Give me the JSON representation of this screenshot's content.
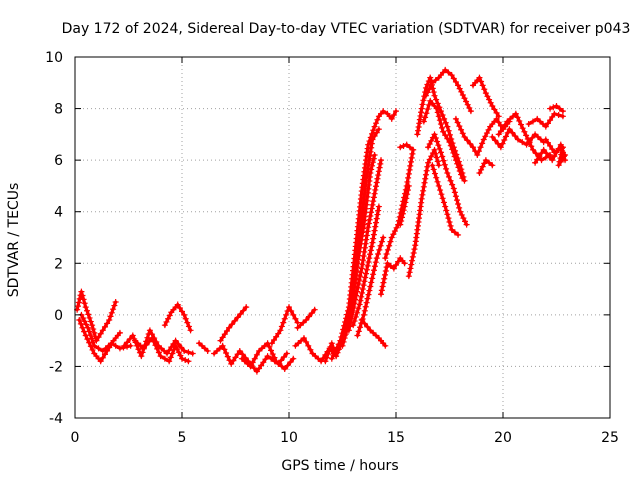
{
  "chart_data": {
    "type": "scatter",
    "title": "Day 172 of 2024, Sidereal Day-to-day VTEC variation (SDTVAR) for receiver p043",
    "xlabel": "GPS time / hours",
    "ylabel": "SDTVAR / TECUs",
    "xlim": [
      0,
      25
    ],
    "ylim": [
      -4,
      10
    ],
    "xticks": [
      "0",
      "5",
      "10",
      "15",
      "20",
      "25"
    ],
    "yticks": [
      "-4",
      "-2",
      "0",
      "2",
      "4",
      "6",
      "8",
      "10"
    ],
    "grid": true,
    "marker": "+",
    "color": "#ff0000",
    "series": [
      {
        "x": [
          0.1,
          0.3,
          0.5,
          0.8,
          1.0,
          1.3,
          1.6,
          1.9
        ],
        "y": [
          0.2,
          0.9,
          0.3,
          -0.4,
          -1.0,
          -0.6,
          -0.2,
          0.5
        ]
      },
      {
        "x": [
          0.2,
          0.5,
          0.9,
          1.2,
          1.5,
          1.8,
          2.1
        ],
        "y": [
          -0.2,
          -0.8,
          -1.5,
          -1.8,
          -1.4,
          -1.0,
          -0.7
        ]
      },
      {
        "x": [
          0.3,
          0.6,
          0.9,
          1.3,
          1.7,
          2.1,
          2.6
        ],
        "y": [
          0.0,
          -0.5,
          -1.2,
          -1.4,
          -1.1,
          -1.3,
          -1.2
        ]
      },
      {
        "x": [
          2.3,
          2.7,
          3.1,
          3.5,
          3.9,
          4.3,
          4.7,
          5.1,
          5.5
        ],
        "y": [
          -1.2,
          -0.8,
          -1.6,
          -0.6,
          -1.2,
          -1.5,
          -1.0,
          -1.4,
          -1.5
        ]
      },
      {
        "x": [
          2.8,
          3.2,
          3.6,
          4.0,
          4.4,
          4.7,
          5.0,
          5.3
        ],
        "y": [
          -1.0,
          -1.3,
          -0.9,
          -1.6,
          -1.8,
          -1.2,
          -1.7,
          -1.8
        ]
      },
      {
        "x": [
          4.2,
          4.5,
          4.8,
          5.1,
          5.4
        ],
        "y": [
          -0.4,
          0.1,
          0.4,
          0.0,
          -0.6
        ]
      },
      {
        "x": [
          5.8,
          6.2
        ],
        "y": [
          -1.1,
          -1.4
        ]
      },
      {
        "x": [
          6.5,
          6.9,
          7.3,
          7.7,
          8.1,
          8.5,
          9.0,
          9.5,
          9.9
        ],
        "y": [
          -1.5,
          -1.2,
          -1.9,
          -1.4,
          -1.8,
          -2.2,
          -1.6,
          -1.9,
          -1.5
        ]
      },
      {
        "x": [
          6.8,
          7.2,
          7.6,
          8.0
        ],
        "y": [
          -1.0,
          -0.5,
          -0.1,
          0.3
        ]
      },
      {
        "x": [
          7.8,
          8.2,
          8.6,
          9.0,
          9.4,
          9.8,
          10.2
        ],
        "y": [
          -1.7,
          -2.0,
          -1.4,
          -1.1,
          -1.8,
          -2.1,
          -1.7
        ]
      },
      {
        "x": [
          9.2,
          9.6,
          10.0,
          10.4
        ],
        "y": [
          -1.1,
          -0.6,
          0.3,
          -0.3
        ]
      },
      {
        "x": [
          10.3,
          10.7,
          11.1,
          11.5,
          11.9,
          12.2
        ],
        "y": [
          -1.2,
          -0.9,
          -1.5,
          -1.8,
          -1.3,
          -1.6
        ]
      },
      {
        "x": [
          10.4,
          10.8,
          11.2
        ],
        "y": [
          -0.5,
          -0.2,
          0.2
        ]
      },
      {
        "x": [
          11.7,
          12.0,
          12.2,
          12.4
        ],
        "y": [
          -1.8,
          -1.1,
          -1.6,
          -1.2
        ]
      },
      {
        "x": [
          12.0,
          12.4,
          12.8,
          13.1,
          13.4,
          13.7,
          14.0,
          14.2,
          14.4,
          14.6,
          14.8,
          15.0
        ],
        "y": [
          -1.7,
          -1.0,
          0.3,
          2.5,
          4.8,
          6.6,
          7.3,
          7.7,
          7.9,
          7.8,
          7.6,
          7.9
        ]
      },
      {
        "x": [
          12.2,
          12.6,
          13.0,
          13.3,
          13.6,
          13.9,
          14.2
        ],
        "y": [
          -1.5,
          -0.8,
          0.8,
          3.0,
          5.2,
          6.8,
          7.2
        ]
      },
      {
        "x": [
          12.5,
          12.9,
          13.2,
          13.5,
          13.8,
          14.0
        ],
        "y": [
          -1.2,
          0.0,
          2.0,
          3.5,
          5.5,
          6.2
        ]
      },
      {
        "x": [
          12.8,
          13.1,
          13.4,
          13.7,
          14.0,
          14.3
        ],
        "y": [
          -0.6,
          0.6,
          1.8,
          3.4,
          4.7,
          6.0
        ]
      },
      {
        "x": [
          13.0,
          13.3,
          13.6,
          13.9,
          14.2
        ],
        "y": [
          -0.4,
          0.4,
          1.6,
          2.8,
          4.2
        ]
      },
      {
        "x": [
          13.2,
          13.5,
          13.8,
          14.1,
          14.4
        ],
        "y": [
          -0.8,
          0.0,
          1.1,
          2.2,
          3.0
        ]
      },
      {
        "x": [
          13.4,
          13.8,
          14.2,
          14.5
        ],
        "y": [
          -0.2,
          -0.6,
          -0.9,
          -1.2
        ]
      },
      {
        "x": [
          14.3,
          14.6,
          14.9,
          15.2,
          15.4
        ],
        "y": [
          0.8,
          2.0,
          1.8,
          2.2,
          2.0
        ]
      },
      {
        "x": [
          14.5,
          14.8,
          15.1,
          15.5,
          15.8
        ],
        "y": [
          2.2,
          3.0,
          3.5,
          5.0,
          6.4
        ]
      },
      {
        "x": [
          15.2,
          15.5,
          15.8
        ],
        "y": [
          6.5,
          6.6,
          6.4
        ]
      },
      {
        "x": [
          15.2,
          15.4,
          15.6
        ],
        "y": [
          3.5,
          4.2,
          5.0
        ]
      },
      {
        "x": [
          15.6,
          15.9,
          16.2,
          16.5,
          16.8,
          17.0
        ],
        "y": [
          1.5,
          2.7,
          4.5,
          5.9,
          6.4,
          5.8
        ]
      },
      {
        "x": [
          16.0,
          16.2,
          16.4,
          16.6,
          16.8,
          17.1,
          17.4,
          17.7,
          18.0,
          18.2
        ],
        "y": [
          7.0,
          8.0,
          8.8,
          9.2,
          8.5,
          7.9,
          7.3,
          6.5,
          5.8,
          5.2
        ]
      },
      {
        "x": [
          16.3,
          16.6,
          16.9,
          17.2,
          17.5,
          17.8,
          18.1
        ],
        "y": [
          7.5,
          8.3,
          8.0,
          7.1,
          6.7,
          6.0,
          5.3
        ]
      },
      {
        "x": [
          16.5,
          16.8,
          17.1,
          17.4,
          17.7,
          18.0,
          18.3
        ],
        "y": [
          6.5,
          7.0,
          6.3,
          5.5,
          4.9,
          4.0,
          3.5
        ]
      },
      {
        "x": [
          16.7,
          17.0,
          17.3,
          17.6,
          17.9
        ],
        "y": [
          5.8,
          5.0,
          4.2,
          3.3,
          3.1
        ]
      },
      {
        "x": [
          16.4,
          16.7,
          17.0,
          17.3,
          17.6,
          17.9,
          18.2,
          18.5
        ],
        "y": [
          8.5,
          9.0,
          9.2,
          9.5,
          9.3,
          8.9,
          8.4,
          7.9
        ]
      },
      {
        "x": [
          17.8,
          18.2,
          18.6,
          18.8,
          19.1,
          19.4,
          19.7,
          20.0,
          20.3
        ],
        "y": [
          7.6,
          6.9,
          6.5,
          6.2,
          6.8,
          7.3,
          7.6,
          7.2,
          7.5
        ]
      },
      {
        "x": [
          18.6,
          18.9,
          19.2,
          19.5,
          19.8
        ],
        "y": [
          8.9,
          9.2,
          8.6,
          8.1,
          7.7
        ]
      },
      {
        "x": [
          18.9,
          19.2,
          19.5
        ],
        "y": [
          5.5,
          6.0,
          5.8
        ]
      },
      {
        "x": [
          19.5,
          19.9,
          20.3,
          20.7,
          21.1,
          21.5,
          21.9
        ],
        "y": [
          6.9,
          6.5,
          7.2,
          6.8,
          6.6,
          7.0,
          6.7
        ]
      },
      {
        "x": [
          19.8,
          20.2,
          20.6,
          21.0,
          21.4,
          21.8,
          22.2
        ],
        "y": [
          7.0,
          7.5,
          7.8,
          7.1,
          6.4,
          6.0,
          6.2
        ]
      },
      {
        "x": [
          21.2,
          21.6,
          22.0,
          22.4,
          22.8
        ],
        "y": [
          7.4,
          7.6,
          7.3,
          7.8,
          7.7
        ]
      },
      {
        "x": [
          22.0,
          22.4,
          22.8,
          22.6,
          22.9
        ],
        "y": [
          6.8,
          6.3,
          6.5,
          5.8,
          6.2
        ]
      },
      {
        "x": [
          21.5,
          21.9,
          22.3,
          22.7,
          22.9
        ],
        "y": [
          5.9,
          6.4,
          6.0,
          6.6,
          6.0
        ]
      },
      {
        "x": [
          22.2,
          22.5,
          22.8
        ],
        "y": [
          8.0,
          8.1,
          7.9
        ]
      }
    ]
  }
}
